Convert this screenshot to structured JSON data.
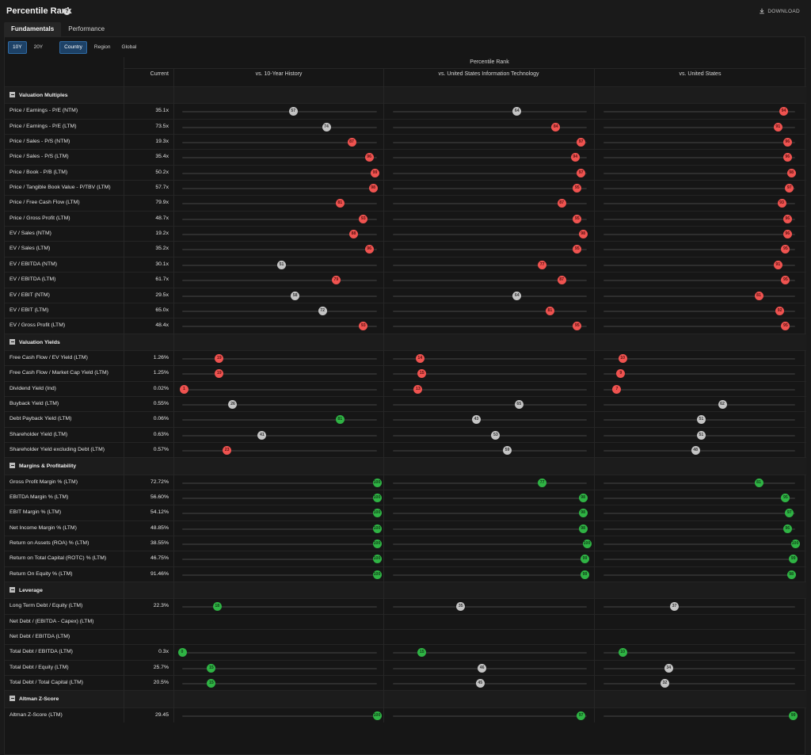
{
  "header": {
    "title": "Percentile Rank",
    "download_label": "DOWNLOAD"
  },
  "tabs": [
    {
      "label": "Fundamentals",
      "active": true
    },
    {
      "label": "Performance",
      "active": false
    }
  ],
  "period_toggles": [
    {
      "label": "10Y",
      "active": true
    },
    {
      "label": "20Y",
      "active": false
    }
  ],
  "scope_toggles": [
    {
      "label": "Country",
      "active": true
    },
    {
      "label": "Region",
      "active": false
    },
    {
      "label": "Global",
      "active": false
    }
  ],
  "table": {
    "group_header": "Percentile Rank",
    "col_current": "Current",
    "col_history": "vs. 10-Year History",
    "col_industry": "vs. United States Information Technology",
    "col_country": "vs. United States",
    "sections": [
      {
        "name": "Valuation Multiples",
        "rows": [
          {
            "label": "Price / Earnings - P/E (NTM)",
            "current": "35.1x",
            "ranks": [
              57,
              64,
              94
            ]
          },
          {
            "label": "Price / Earnings - P/E (LTM)",
            "current": "73.5x",
            "ranks": [
              74,
              84,
              91
            ]
          },
          {
            "label": "Price / Sales - P/S (NTM)",
            "current": "19.3x",
            "ranks": [
              87,
              97,
              96
            ]
          },
          {
            "label": "Price / Sales - P/S (LTM)",
            "current": "35.4x",
            "ranks": [
              96,
              94,
              96
            ]
          },
          {
            "label": "Price / Book - P/B (LTM)",
            "current": "50.2x",
            "ranks": [
              99,
              97,
              98
            ]
          },
          {
            "label": "Price / Tangible Book Value - P/TBV (LTM)",
            "current": "57.7x",
            "ranks": [
              98,
              95,
              97
            ]
          },
          {
            "label": "Price / Free Cash Flow (LTM)",
            "current": "79.9x",
            "ranks": [
              81,
              87,
              93
            ]
          },
          {
            "label": "Price / Gross Profit (LTM)",
            "current": "48.7x",
            "ranks": [
              93,
              95,
              96
            ]
          },
          {
            "label": "EV / Sales (NTM)",
            "current": "19.2x",
            "ranks": [
              88,
              98,
              96
            ]
          },
          {
            "label": "EV / Sales (LTM)",
            "current": "35.2x",
            "ranks": [
              96,
              95,
              95
            ]
          },
          {
            "label": "EV / EBITDA (NTM)",
            "current": "30.1x",
            "ranks": [
              51,
              77,
              91
            ]
          },
          {
            "label": "EV / EBITDA (LTM)",
            "current": "61.7x",
            "ranks": [
              79,
              87,
              95
            ]
          },
          {
            "label": "EV / EBIT (NTM)",
            "current": "29.5x",
            "ranks": [
              58,
              64,
              81
            ]
          },
          {
            "label": "EV / EBIT (LTM)",
            "current": "65.0x",
            "ranks": [
              72,
              81,
              92
            ]
          },
          {
            "label": "EV / Gross Profit (LTM)",
            "current": "48.4x",
            "ranks": [
              93,
              95,
              95
            ]
          }
        ]
      },
      {
        "name": "Valuation Yields",
        "rows": [
          {
            "label": "Free Cash Flow / EV Yield (LTM)",
            "current": "1.26%",
            "ranks": [
              19,
              14,
              10
            ]
          },
          {
            "label": "Free Cash Flow / Market Cap Yield (LTM)",
            "current": "1.25%",
            "ranks": [
              19,
              15,
              9
            ]
          },
          {
            "label": "Dividend Yield (Ind)",
            "current": "0.02%",
            "ranks": [
              1,
              13,
              7
            ]
          },
          {
            "label": "Buyback Yield (LTM)",
            "current": "0.55%",
            "ranks": [
              26,
              65,
              62
            ]
          },
          {
            "label": "Debt Payback Yield (LTM)",
            "current": "0.06%",
            "ranks": [
              81,
              43,
              51
            ]
          },
          {
            "label": "Shareholder Yield (LTM)",
            "current": "0.63%",
            "ranks": [
              41,
              53,
              51
            ]
          },
          {
            "label": "Shareholder Yield excluding Debt (LTM)",
            "current": "0.57%",
            "ranks": [
              23,
              59,
              48
            ]
          }
        ]
      },
      {
        "name": "Margins & Profitability",
        "rows": [
          {
            "label": "Gross Profit Margin % (LTM)",
            "current": "72.72%",
            "ranks": [
              100,
              77,
              81
            ]
          },
          {
            "label": "EBITDA Margin % (LTM)",
            "current": "56.60%",
            "ranks": [
              100,
              98,
              95
            ]
          },
          {
            "label": "EBIT Margin % (LTM)",
            "current": "54.12%",
            "ranks": [
              100,
              98,
              97
            ]
          },
          {
            "label": "Net Income Margin % (LTM)",
            "current": "48.85%",
            "ranks": [
              100,
              98,
              96
            ]
          },
          {
            "label": "Return on Assets (ROA) % (LTM)",
            "current": "38.55%",
            "ranks": [
              100,
              100,
              100
            ]
          },
          {
            "label": "Return on Total Capital (ROTC) % (LTM)",
            "current": "46.75%",
            "ranks": [
              100,
              99,
              99
            ]
          },
          {
            "label": "Return On Equity % (LTM)",
            "current": "91.46%",
            "ranks": [
              100,
              99,
              98
            ]
          }
        ]
      },
      {
        "name": "Leverage",
        "rows": [
          {
            "label": "Long Term Debt / Equity (LTM)",
            "current": "22.3%",
            "ranks": [
              18,
              35,
              37
            ]
          },
          {
            "label": "Net Debt / (EBITDA - Capex) (LTM)",
            "current": "",
            "ranks": []
          },
          {
            "label": "Net Debt / EBITDA (LTM)",
            "current": "",
            "ranks": []
          },
          {
            "label": "Total Debt / EBITDA (LTM)",
            "current": "0.3x",
            "ranks": [
              0,
              15,
              10
            ]
          },
          {
            "label": "Total Debt / Equity (LTM)",
            "current": "25.7%",
            "ranks": [
              15,
              46,
              34
            ]
          },
          {
            "label": "Total Debt / Total Capital (LTM)",
            "current": "20.5%",
            "ranks": [
              15,
              45,
              32
            ]
          }
        ]
      },
      {
        "name": "Altman Z-Score",
        "rows": [
          {
            "label": "Altman Z-Score (LTM)",
            "current": "29.45",
            "ranks": [
              100,
              97,
              99
            ]
          }
        ]
      }
    ]
  },
  "colors": {
    "red": "#ef5350",
    "grey": "#c4c4c4",
    "green": "#2fb344",
    "active_toggle": "#1d4166"
  }
}
